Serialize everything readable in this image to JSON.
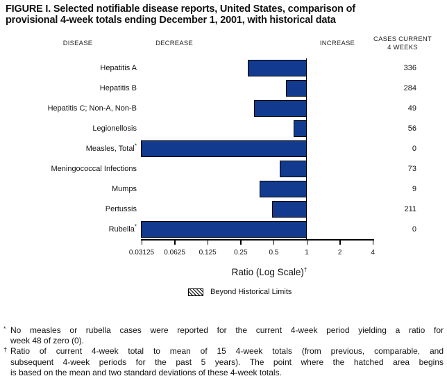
{
  "title": {
    "line1": "FIGURE I. Selected notifiable disease reports, United States, comparison of",
    "line2": "provisional 4-week totals ending December 1, 2001, with historical data"
  },
  "column_headers": {
    "disease": "DISEASE",
    "decrease": "DECREASE",
    "increase": "INCREASE",
    "cases_line1": "CASES CURRENT",
    "cases_line2": "4 WEEKS"
  },
  "chart_data": {
    "type": "bar",
    "orientation": "horizontal",
    "x_scale": "log",
    "x_ticks": [
      "0.03125",
      "0.0625",
      "0.125",
      "0.25",
      "0.5",
      "1",
      "2",
      "4"
    ],
    "x_range": [
      0.03125,
      4
    ],
    "reference_ratio": 1,
    "x_axis_label": "Ratio (Log Scale)",
    "x_axis_label_note": "†",
    "bar_color": "#123a8e",
    "bar_border_color": "#000000",
    "rows": [
      {
        "disease": "Hepatitis A",
        "footnote": "",
        "ratio": 0.29,
        "cases": "336"
      },
      {
        "disease": "Hepatitis B",
        "footnote": "",
        "ratio": 0.65,
        "cases": "284"
      },
      {
        "disease": "Hepatitis C; Non-A, Non-B",
        "footnote": "",
        "ratio": 0.33,
        "cases": "49"
      },
      {
        "disease": "Legionellosis",
        "footnote": "",
        "ratio": 0.76,
        "cases": "56"
      },
      {
        "disease": "Measles, Total",
        "footnote": "*",
        "ratio": 0,
        "cases": "0"
      },
      {
        "disease": "Meningococcal Infections",
        "footnote": "",
        "ratio": 0.57,
        "cases": "73"
      },
      {
        "disease": "Mumps",
        "footnote": "",
        "ratio": 0.37,
        "cases": "9"
      },
      {
        "disease": "Pertussis",
        "footnote": "",
        "ratio": 0.48,
        "cases": "211"
      },
      {
        "disease": "Rubella",
        "footnote": "*",
        "ratio": 0,
        "cases": "0"
      }
    ],
    "legend": {
      "swatch": "hatched",
      "label": "Beyond Historical Limits"
    }
  },
  "footnotes": [
    {
      "marker": "*",
      "lines": [
        "No measles or rubella cases were reported for the current 4-week period yielding a ratio for",
        "week 48 of zero (0)."
      ]
    },
    {
      "marker": "†",
      "lines": [
        "Ratio of current 4-week total to mean of 15 4-week totals (from previous, comparable, and",
        "subsequent 4-week periods for the past 5 years). The point where the hatched area begins",
        "is based on the mean and two standard deviations of these 4-week totals."
      ]
    }
  ]
}
